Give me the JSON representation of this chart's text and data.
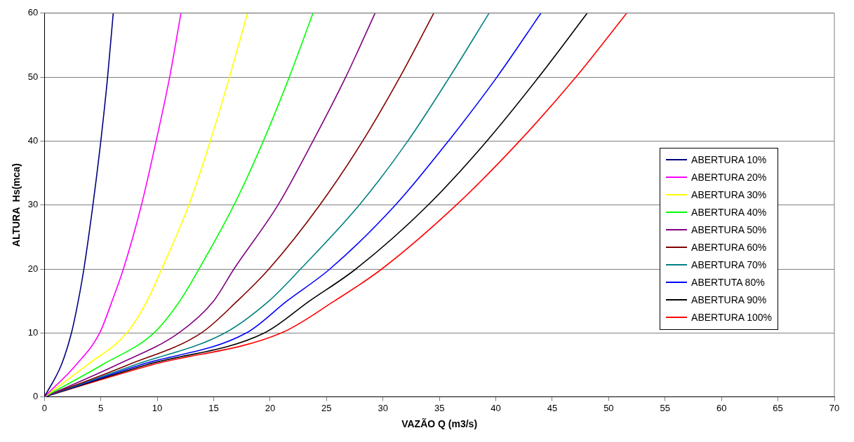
{
  "chart_data": {
    "type": "line",
    "xlabel": "VAZÃO Q (m3/s)",
    "ylabel": "ALTURA  Hs(mca)",
    "xlim": [
      0,
      70
    ],
    "xticks": [
      0,
      5,
      10,
      15,
      20,
      25,
      30,
      35,
      40,
      45,
      50,
      55,
      60,
      65,
      70
    ],
    "ylim": [
      0,
      60
    ],
    "yticks": [
      0,
      10,
      20,
      30,
      40,
      50,
      60
    ],
    "grid": "y",
    "legend": "right",
    "marker": "none",
    "line_style": "solid",
    "series": [
      {
        "name": "ABERTURA 10%",
        "color": "#000080",
        "x": [
          0,
          1.5,
          2.4,
          3.0,
          3.5,
          4.3,
          5.0,
          5.6,
          6.1
        ],
        "values": [
          0,
          5,
          10,
          15,
          20,
          30,
          40,
          50,
          60
        ]
      },
      {
        "name": "ABERTURA 20%",
        "color": "#ff00ff",
        "x": [
          0,
          2.8,
          4.9,
          6.0,
          7.0,
          8.6,
          9.9,
          11.1,
          12.1
        ],
        "values": [
          0,
          5,
          10,
          15,
          20,
          30,
          40,
          50,
          60
        ]
      },
      {
        "name": "ABERTURA 30%",
        "color": "#ffff00",
        "x": [
          0,
          3.8,
          7.3,
          9.1,
          10.4,
          12.8,
          14.7,
          16.4,
          18.0
        ],
        "values": [
          0,
          5,
          10,
          15,
          20,
          30,
          40,
          50,
          60
        ]
      },
      {
        "name": "ABERTURA 40%",
        "color": "#00ff00",
        "x": [
          0,
          5.1,
          9.7,
          12.0,
          13.7,
          16.8,
          19.4,
          21.7,
          23.8
        ],
        "values": [
          0,
          5,
          10,
          15,
          20,
          30,
          40,
          50,
          60
        ]
      },
      {
        "name": "ABERTURA 50%",
        "color": "#800080",
        "x": [
          0,
          6.4,
          11.9,
          15.0,
          16.8,
          20.7,
          23.8,
          26.7,
          29.3
        ],
        "values": [
          0,
          5,
          10,
          15,
          20,
          30,
          40,
          50,
          60
        ]
      },
      {
        "name": "ABERTURA 60%",
        "color": "#800000",
        "x": [
          0,
          7.4,
          13.9,
          17.1,
          19.9,
          24.4,
          28.2,
          31.5,
          34.5
        ],
        "values": [
          0,
          5,
          10,
          15,
          20,
          30,
          40,
          50,
          60
        ]
      },
      {
        "name": "ABERTURA 70%",
        "color": "#008080",
        "x": [
          0,
          8.0,
          16.0,
          19.9,
          22.7,
          27.9,
          32.2,
          35.9,
          39.4
        ],
        "values": [
          0,
          5,
          10,
          15,
          20,
          30,
          40,
          50,
          60
        ]
      },
      {
        "name": "ABERTUTA 80%",
        "color": "#0000ff",
        "x": [
          0,
          8.5,
          17.9,
          21.5,
          25.3,
          31.1,
          35.8,
          40.1,
          44.0
        ],
        "values": [
          0,
          5,
          10,
          15,
          20,
          30,
          40,
          50,
          60
        ]
      },
      {
        "name": "ABERTURA 90%",
        "color": "#000000",
        "x": [
          0,
          9.0,
          19.5,
          23.5,
          27.6,
          34.0,
          39.2,
          43.8,
          48.1
        ],
        "values": [
          0,
          5,
          10,
          15,
          20,
          30,
          40,
          50,
          60
        ]
      },
      {
        "name": "ABERTURA 100%",
        "color": "#ff0000",
        "x": [
          0,
          9.5,
          21.0,
          25.7,
          29.9,
          36.5,
          42.1,
          47.1,
          51.6
        ],
        "values": [
          0,
          5,
          10,
          15,
          20,
          30,
          40,
          50,
          60
        ]
      }
    ]
  }
}
